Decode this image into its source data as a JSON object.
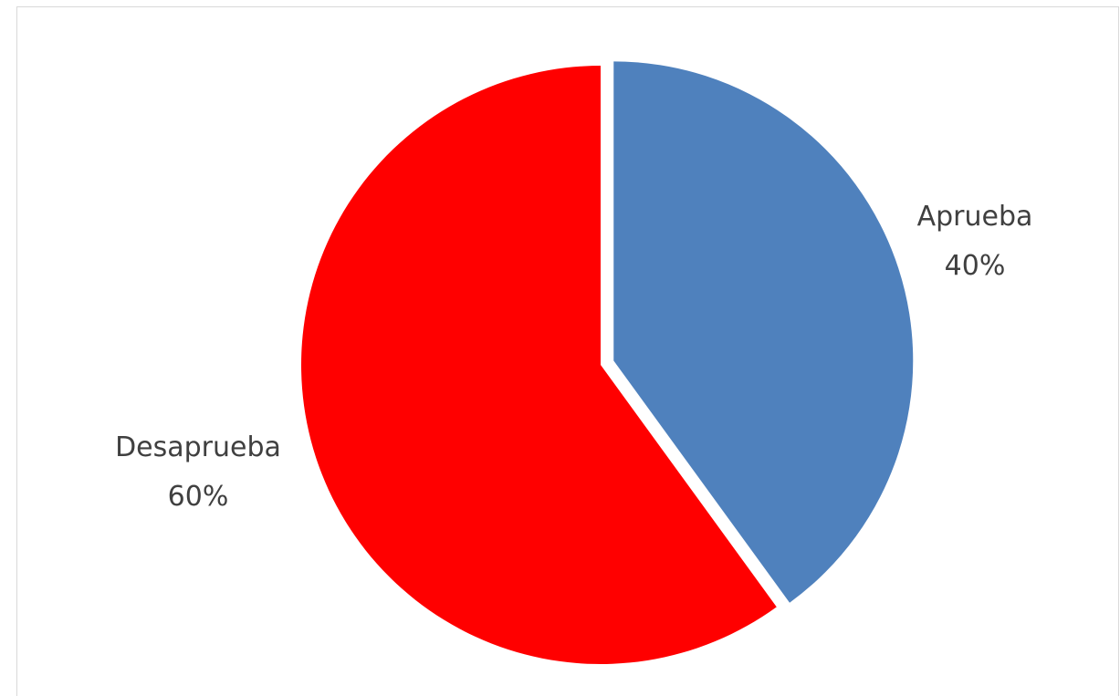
{
  "chart_data": {
    "type": "pie",
    "categories": [
      "Aprueba",
      "Desaprueba"
    ],
    "values": [
      40,
      60
    ],
    "value_labels": [
      "40%",
      "60%"
    ],
    "colors": [
      "#4f81bd",
      "#ff0000"
    ],
    "exploded": [
      "Aprueba"
    ],
    "start_angle_deg": 0,
    "direction": "clockwise",
    "legend": "none"
  }
}
